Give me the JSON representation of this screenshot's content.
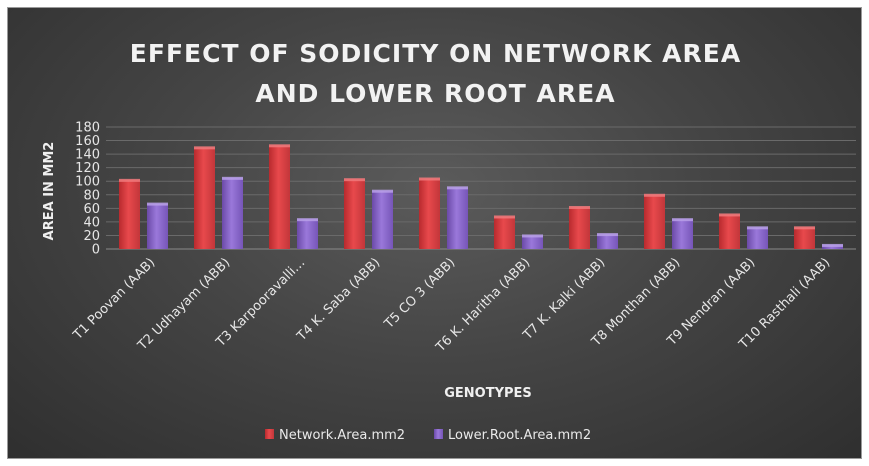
{
  "chart_data": {
    "type": "bar",
    "title": "EFFECT OF SODICITY ON NETWORK AREA\nAND LOWER ROOT AREA",
    "xlabel": "GENOTYPES",
    "ylabel": "AREA IN MM2",
    "ylim": [
      0,
      180
    ],
    "yticks": [
      0,
      20,
      40,
      60,
      80,
      100,
      120,
      140,
      160,
      180
    ],
    "grid": true,
    "legend_position": "bottom",
    "categories": [
      "T1 Poovan (AAB)",
      "T2 Udhayam (ABB)",
      "T3 Karpooravalli…",
      "T4 K. Saba (ABB)",
      "T5 CO 3 (ABB)",
      "T6 K. Haritha (ABB)",
      "T7  K. Kalki (ABB)",
      "T8 Monthan (ABB)",
      "T9 Nendran (AAB)",
      "T10 Rasthali (AAB)"
    ],
    "series": [
      {
        "name": "Network.Area.mm2",
        "color": "#e03a3e",
        "values": [
          102,
          150,
          153,
          103,
          104,
          48,
          62,
          80,
          51,
          32
        ]
      },
      {
        "name": "Lower.Root.Area.mm2",
        "color": "#8560c8",
        "values": [
          67,
          105,
          44,
          86,
          91,
          20,
          22,
          44,
          32,
          6
        ]
      }
    ]
  }
}
